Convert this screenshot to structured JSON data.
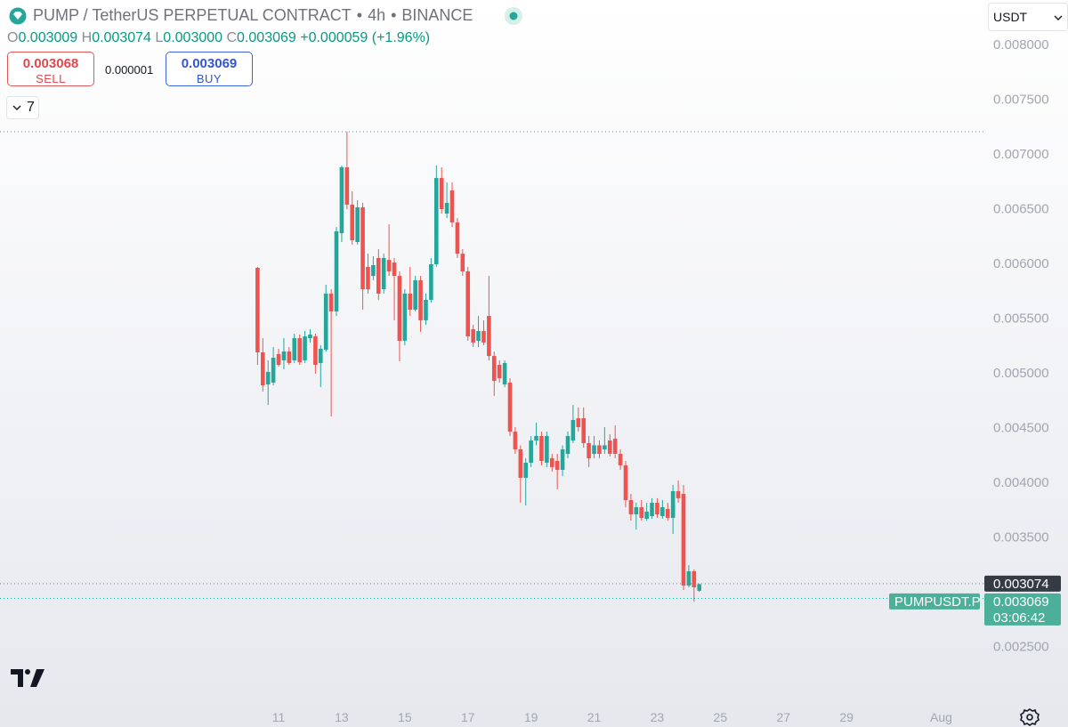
{
  "header": {
    "title": "PUMP / TetherUS PERPETUAL CONTRACT",
    "separator": "•",
    "interval": "4h",
    "exchange": "BINANCE"
  },
  "ohlc": {
    "o_label": "O",
    "open": "0.003009",
    "h_label": "H",
    "high": "0.003074",
    "l_label": "L",
    "low": "0.003000",
    "c_label": "C",
    "close": "0.003069",
    "change": "+0.000059 (+1.96%)"
  },
  "trade": {
    "sell_price": "0.003068",
    "sell_label": "SELL",
    "spread": "0.000001",
    "buy_price": "0.003069",
    "buy_label": "BUY"
  },
  "indicators_count": "7",
  "currency": "USDT",
  "price_labels": {
    "high_line": "0.003074",
    "symbol": "PUMPUSDT.P",
    "last_price": "0.003069",
    "countdown": "03:06:42"
  },
  "chart_data": {
    "type": "candlestick",
    "up_color": "#26a69a",
    "down_color": "#ef5350",
    "grid": false,
    "x": [
      10.333,
      10.5,
      10.667,
      10.833,
      11,
      11.167,
      11.333,
      11.5,
      11.667,
      11.833,
      12,
      12.167,
      12.333,
      12.5,
      12.667,
      12.833,
      13,
      13.167,
      13.333,
      13.5,
      13.667,
      13.833,
      14,
      14.167,
      14.333,
      14.5,
      14.667,
      14.833,
      15,
      15.167,
      15.333,
      15.5,
      15.667,
      15.833,
      16,
      16.167,
      16.333,
      16.5,
      16.667,
      16.833,
      17,
      17.167,
      17.333,
      17.5,
      17.667,
      17.833,
      18,
      18.167,
      18.333,
      18.5,
      18.667,
      18.833,
      19,
      19.167,
      19.333,
      19.5,
      19.667,
      19.833,
      20,
      20.167,
      20.333,
      20.5,
      20.667,
      20.833,
      21,
      21.167,
      21.333,
      21.5,
      21.667,
      21.833,
      22,
      22.167,
      22.333,
      22.5,
      22.667,
      22.833,
      23,
      23.167,
      23.333,
      23.5,
      23.667,
      23.833,
      24,
      24.167,
      24.333
    ],
    "open": [
      0.005959,
      0.005187,
      0.004894,
      0.004911,
      0.005171,
      0.005114,
      0.005195,
      0.005114,
      0.005317,
      0.005114,
      0.005317,
      0.005333,
      0.00509,
      0.005211,
      0.005724,
      0.005561,
      0.006276,
      0.006878,
      0.006537,
      0.006195,
      0.006512,
      0.005968,
      0.005886,
      0.006049,
      0.005764,
      0.006032,
      0.006008,
      0.005886,
      0.005293,
      0.005724,
      0.005577,
      0.005846,
      0.00548,
      0.005667,
      0.005992,
      0.00678,
      0.006455,
      0.006667,
      0.006374,
      0.006089,
      0.005927,
      0.005398,
      0.005293,
      0.005382,
      0.00552,
      0.005154,
      0.005073,
      0.004894,
      0.004911,
      0.004463,
      0.004301,
      0.004041,
      0.004179,
      0.004382,
      0.004423,
      0.004179,
      0.00422,
      0.004195,
      0.004114,
      0.00426,
      0.004382,
      0.004585,
      0.004585,
      0.004358,
      0.00426,
      0.004338,
      0.004301,
      0.004382,
      0.004398,
      0.00426,
      0.004155,
      0.003837,
      0.003707,
      0.003772,
      0.003667,
      0.003691,
      0.003813,
      0.003691,
      0.003756,
      0.003675,
      0.003919,
      0.003894,
      0.003057,
      0.003187,
      0.003009
    ],
    "high": [
      0.005968,
      0.005317,
      0.005114,
      0.005236,
      0.00522,
      0.005317,
      0.005236,
      0.005358,
      0.00535,
      0.005382,
      0.005398,
      0.005358,
      0.005252,
      0.005805,
      0.005764,
      0.006333,
      0.006894,
      0.007203,
      0.006659,
      0.006577,
      0.006553,
      0.006089,
      0.006065,
      0.00613,
      0.006089,
      0.006358,
      0.006049,
      0.005927,
      0.005764,
      0.005968,
      0.005886,
      0.005886,
      0.005724,
      0.006049,
      0.006894,
      0.006878,
      0.00674,
      0.00674,
      0.006415,
      0.00613,
      0.005968,
      0.005439,
      0.00552,
      0.00548,
      0.005886,
      0.005195,
      0.005114,
      0.005114,
      0.004951,
      0.004504,
      0.004338,
      0.00422,
      0.004423,
      0.004545,
      0.004463,
      0.004463,
      0.00426,
      0.00426,
      0.004338,
      0.004463,
      0.004707,
      0.004683,
      0.004683,
      0.004423,
      0.004423,
      0.004382,
      0.004504,
      0.004439,
      0.00452,
      0.004301,
      0.004195,
      0.003894,
      0.003813,
      0.003837,
      0.003813,
      0.003854,
      0.003854,
      0.003837,
      0.003813,
      0.003976,
      0.004016,
      0.003976,
      0.003244,
      0.003204,
      0.003074
    ],
    "low": [
      0.005073,
      0.004829,
      0.004707,
      0.004886,
      0.005057,
      0.005033,
      0.005073,
      0.00509,
      0.005073,
      0.00509,
      0.005277,
      0.004992,
      0.00487,
      0.005195,
      0.004602,
      0.00552,
      0.006195,
      0.006496,
      0.006171,
      0.006171,
      0.005577,
      0.005724,
      0.005846,
      0.005667,
      0.005724,
      0.005886,
      0.00548,
      0.005106,
      0.005252,
      0.00552,
      0.005561,
      0.005374,
      0.005439,
      0.005642,
      0.005968,
      0.006455,
      0.006415,
      0.006333,
      0.006049,
      0.005886,
      0.005293,
      0.005236,
      0.005236,
      0.005252,
      0.005114,
      0.004789,
      0.004911,
      0.00487,
      0.004423,
      0.00426,
      0.003813,
      0.003789,
      0.004139,
      0.004338,
      0.004155,
      0.004139,
      0.004098,
      0.003935,
      0.004057,
      0.00422,
      0.004358,
      0.004463,
      0.004317,
      0.004139,
      0.00422,
      0.00422,
      0.00426,
      0.004236,
      0.00422,
      0.004114,
      0.003772,
      0.00365,
      0.003569,
      0.00365,
      0.00365,
      0.003667,
      0.003675,
      0.003667,
      0.00365,
      0.003528,
      0.003813,
      0.003016,
      0.003041,
      0.002911,
      0.003
    ],
    "close": [
      0.005187,
      0.004886,
      0.005008,
      0.005138,
      0.005073,
      0.005195,
      0.00509,
      0.005317,
      0.005098,
      0.005333,
      0.00535,
      0.005073,
      0.00522,
      0.005724,
      0.005561,
      0.006293,
      0.006878,
      0.006537,
      0.006211,
      0.006512,
      0.005764,
      0.005764,
      0.005984,
      0.005724,
      0.006049,
      0.005927,
      0.005886,
      0.005293,
      0.005724,
      0.005577,
      0.005846,
      0.00548,
      0.005667,
      0.005992,
      0.00678,
      0.006496,
      0.006553,
      0.006374,
      0.006089,
      0.005927,
      0.005333,
      0.005277,
      0.005382,
      0.005277,
      0.005154,
      0.004927,
      0.004951,
      0.00509,
      0.004463,
      0.004301,
      0.004041,
      0.004179,
      0.004382,
      0.004423,
      0.004195,
      0.004423,
      0.004139,
      0.004114,
      0.004301,
      0.004423,
      0.004569,
      0.004504,
      0.004358,
      0.00422,
      0.004338,
      0.00426,
      0.004338,
      0.00426,
      0.00426,
      0.004155,
      0.003837,
      0.003707,
      0.003772,
      0.003675,
      0.003732,
      0.003813,
      0.003707,
      0.003772,
      0.003675,
      0.003919,
      0.003854,
      0.003057,
      0.003187,
      0.003041,
      0.003069
    ],
    "xlim": [
      2.17,
      33.34
    ],
    "xticks": [
      11,
      13,
      15,
      17,
      19,
      21,
      23,
      25,
      27,
      29,
      {
        "value": 32,
        "label": "Aug"
      }
    ],
    "ylim": [
      0.0019838,
      0.0084065
    ],
    "yticks": [
      {
        "value": 0.008,
        "label": "0.008000"
      },
      {
        "value": 0.0075,
        "label": "0.007500"
      },
      {
        "value": 0.007,
        "label": "0.007000"
      },
      {
        "value": 0.0065,
        "label": "0.006500"
      },
      {
        "value": 0.006,
        "label": "0.006000"
      },
      {
        "value": 0.0055,
        "label": "0.005500"
      },
      {
        "value": 0.005,
        "label": "0.005000"
      },
      {
        "value": 0.0045,
        "label": "0.004500"
      },
      {
        "value": 0.004,
        "label": "0.004000"
      },
      {
        "value": 0.0035,
        "label": "0.003500"
      },
      {
        "value": 0.0025,
        "label": "0.002500"
      }
    ]
  }
}
